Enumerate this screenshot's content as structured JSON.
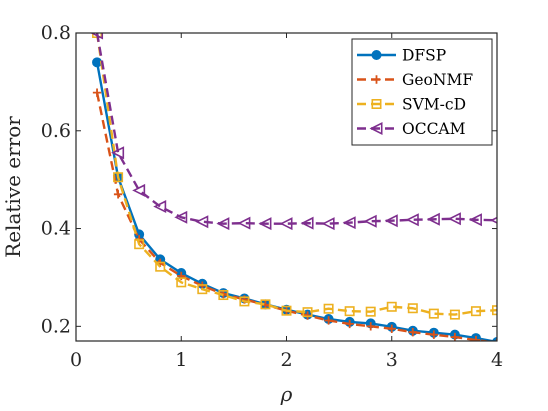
{
  "chart_data": {
    "type": "line",
    "xlabel": "ρ",
    "ylabel": "Relative error",
    "xlim": [
      0,
      4
    ],
    "ylim": [
      0.17,
      0.8
    ],
    "xticks": [
      0,
      1,
      2,
      3,
      4
    ],
    "yticks": [
      0.2,
      0.4,
      0.6,
      0.8
    ],
    "x_tick_labels": [
      "0",
      "1",
      "2",
      "3",
      "4"
    ],
    "y_tick_labels": [
      "0.2",
      "0.4",
      "0.6",
      "0.8"
    ],
    "grid": false,
    "legend_position": "top-right",
    "x": [
      0.2,
      0.4,
      0.6,
      0.8,
      1.0,
      1.2,
      1.4,
      1.6,
      1.8,
      2.0,
      2.2,
      2.4,
      2.6,
      2.8,
      3.0,
      3.2,
      3.4,
      3.6,
      3.8,
      4.0
    ],
    "series": [
      {
        "name": "DFSP",
        "color": "#0072BD",
        "dash": "solid",
        "marker": "circle",
        "values": [
          0.74,
          0.505,
          0.388,
          0.337,
          0.309,
          0.287,
          0.268,
          0.257,
          0.245,
          0.234,
          0.224,
          0.215,
          0.209,
          0.206,
          0.199,
          0.191,
          0.187,
          0.183,
          0.176,
          0.168
        ]
      },
      {
        "name": "GeoNMF",
        "color": "#D95319",
        "dash": "dashed",
        "marker": "plus",
        "values": [
          0.678,
          0.47,
          0.378,
          0.33,
          0.303,
          0.283,
          0.266,
          0.255,
          0.244,
          0.232,
          0.222,
          0.212,
          0.205,
          0.2,
          0.195,
          0.188,
          0.183,
          0.178,
          0.172,
          0.166
        ]
      },
      {
        "name": "SVM-cD",
        "color": "#EDB120",
        "dash": "dashed",
        "marker": "square",
        "values": [
          0.8,
          0.505,
          0.368,
          0.322,
          0.29,
          0.276,
          0.264,
          0.251,
          0.245,
          0.232,
          0.229,
          0.236,
          0.231,
          0.23,
          0.24,
          0.237,
          0.226,
          0.224,
          0.231,
          0.233
        ]
      },
      {
        "name": "OCCAM",
        "color": "#7E2F8E",
        "dash": "dashed",
        "marker": "triangle-left",
        "values": [
          0.8,
          0.555,
          0.478,
          0.445,
          0.423,
          0.414,
          0.41,
          0.411,
          0.41,
          0.41,
          0.411,
          0.41,
          0.412,
          0.415,
          0.416,
          0.418,
          0.419,
          0.42,
          0.418,
          0.417
        ]
      }
    ]
  }
}
